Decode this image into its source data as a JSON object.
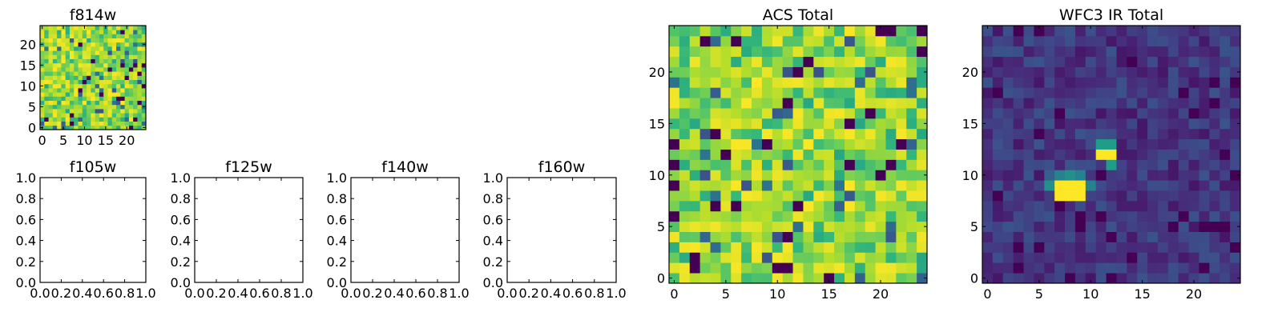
{
  "chart_data": [
    {
      "type": "heatmap",
      "title": "f814w",
      "x_ticks": [
        "0",
        "5",
        "10",
        "15",
        "20"
      ],
      "y_ticks": [
        "0",
        "5",
        "10",
        "15",
        "20"
      ],
      "xlim": [
        -0.5,
        24.5
      ],
      "ylim": [
        -0.5,
        24.5
      ],
      "grid_size": [
        25,
        25
      ],
      "colormap": "viridis",
      "pattern": "uniform noise, high values dominant",
      "seed": 11
    },
    {
      "type": "heatmap",
      "title": "f105w",
      "x_ticks": [
        "0.0",
        "0.2",
        "0.4",
        "0.6",
        "0.8",
        "1.0"
      ],
      "y_ticks": [
        "0.0",
        "0.2",
        "0.4",
        "0.6",
        "0.8",
        "1.0"
      ],
      "xlim": [
        0,
        1
      ],
      "ylim": [
        0,
        1
      ],
      "empty": true
    },
    {
      "type": "heatmap",
      "title": "f125w",
      "x_ticks": [
        "0.0",
        "0.2",
        "0.4",
        "0.6",
        "0.8",
        "1.0"
      ],
      "y_ticks": [
        "0.0",
        "0.2",
        "0.4",
        "0.6",
        "0.8",
        "1.0"
      ],
      "xlim": [
        0,
        1
      ],
      "ylim": [
        0,
        1
      ],
      "empty": true
    },
    {
      "type": "heatmap",
      "title": "f140w",
      "x_ticks": [
        "0.0",
        "0.2",
        "0.4",
        "0.6",
        "0.8",
        "1.0"
      ],
      "y_ticks": [
        "0.0",
        "0.2",
        "0.4",
        "0.6",
        "0.8",
        "1.0"
      ],
      "xlim": [
        0,
        1
      ],
      "ylim": [
        0,
        1
      ],
      "empty": true
    },
    {
      "type": "heatmap",
      "title": "f160w",
      "x_ticks": [
        "0.0",
        "0.2",
        "0.4",
        "0.6",
        "0.8",
        "1.0"
      ],
      "y_ticks": [
        "0.0",
        "0.2",
        "0.4",
        "0.6",
        "0.8",
        "1.0"
      ],
      "xlim": [
        0,
        1
      ],
      "ylim": [
        0,
        1
      ],
      "empty": true
    },
    {
      "type": "heatmap",
      "title": "ACS Total",
      "x_ticks": [
        "0",
        "5",
        "10",
        "15",
        "20"
      ],
      "y_ticks": [
        "0",
        "5",
        "10",
        "15",
        "20"
      ],
      "xlim": [
        -0.5,
        24.5
      ],
      "ylim": [
        -0.5,
        24.5
      ],
      "grid_size": [
        25,
        25
      ],
      "colormap": "viridis",
      "pattern": "uniform noise, high values dominant",
      "seed": 29
    },
    {
      "type": "heatmap",
      "title": "WFC3 IR Total",
      "x_ticks": [
        "0",
        "5",
        "10",
        "15",
        "20"
      ],
      "y_ticks": [
        "0",
        "5",
        "10",
        "15",
        "20"
      ],
      "xlim": [
        -0.5,
        24.5
      ],
      "ylim": [
        -0.5,
        24.5
      ],
      "grid_size": [
        25,
        25
      ],
      "colormap": "viridis",
      "pattern": "low background noise with bright sources",
      "seed": 47,
      "bright_cells": [
        {
          "x": 7,
          "y": 8,
          "value": 1.0
        },
        {
          "x": 8,
          "y": 8,
          "value": 1.0
        },
        {
          "x": 9,
          "y": 8,
          "value": 1.0
        },
        {
          "x": 7,
          "y": 9,
          "value": 1.0
        },
        {
          "x": 8,
          "y": 9,
          "value": 1.0
        },
        {
          "x": 9,
          "y": 9,
          "value": 1.0
        },
        {
          "x": 6,
          "y": 9,
          "value": 0.5
        },
        {
          "x": 10,
          "y": 9,
          "value": 0.45
        },
        {
          "x": 6,
          "y": 10,
          "value": 0.3
        },
        {
          "x": 7,
          "y": 10,
          "value": 0.45
        },
        {
          "x": 8,
          "y": 10,
          "value": 0.5
        },
        {
          "x": 9,
          "y": 10,
          "value": 0.45
        },
        {
          "x": 11,
          "y": 12,
          "value": 1.0
        },
        {
          "x": 12,
          "y": 12,
          "value": 1.0
        },
        {
          "x": 11,
          "y": 13,
          "value": 0.55
        },
        {
          "x": 12,
          "y": 13,
          "value": 0.55
        },
        {
          "x": 12,
          "y": 11,
          "value": 0.55
        }
      ]
    }
  ]
}
